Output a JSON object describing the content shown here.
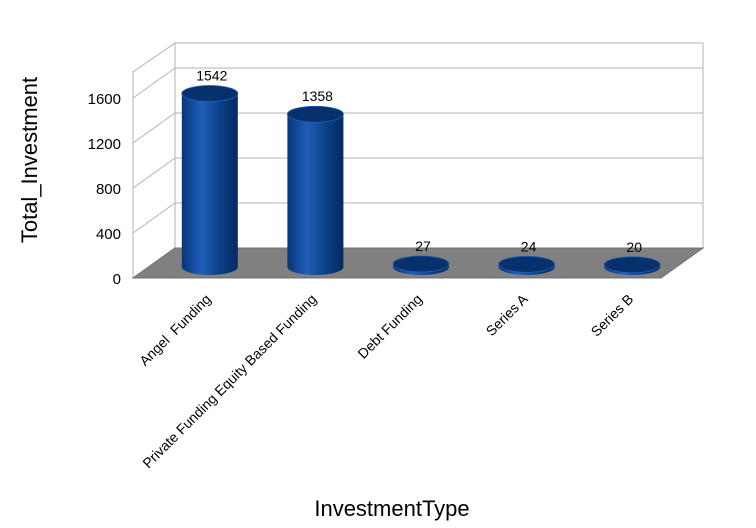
{
  "chart_data": {
    "type": "bar",
    "title": "",
    "xlabel": "InvestmentType",
    "ylabel": "Total_Investment",
    "categories": [
      "Angel  Funding",
      "Private Funding Equity Based Funding",
      "Debt Funding",
      "Series A",
      "Series B"
    ],
    "values": [
      1542,
      1358,
      27,
      24,
      20
    ],
    "data_labels": [
      "1542",
      "1358",
      "27",
      "24",
      "20"
    ],
    "y_ticks": [
      "0",
      "400",
      "800",
      "1200",
      "1600"
    ],
    "ylim": [
      0,
      1600
    ],
    "grid": true,
    "bar_shape": "cylinder-3d",
    "colors": {
      "bar": "#0a3f86",
      "bar_top": "#06316d",
      "floor": "#808080",
      "grid": "#b3b3b3"
    }
  }
}
